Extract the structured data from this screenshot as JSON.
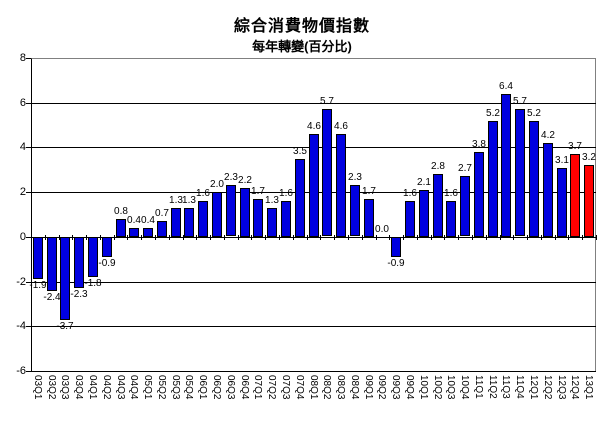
{
  "chart_data": {
    "type": "bar",
    "title": "綜合消費物價指數",
    "subtitle": "每年轉變(百分比)",
    "xlabel": "",
    "ylabel": "",
    "ylim": [
      -6,
      8
    ],
    "y_ticks": [
      8,
      6,
      4,
      2,
      0,
      -2,
      -4,
      -6
    ],
    "grid": true,
    "legend": "none",
    "bar_color": "#0000E0",
    "bar_border_color": "#000000",
    "highlight_color": "#FF0000",
    "highlight_indices": [
      39,
      40
    ],
    "categories": [
      "03Q1",
      "03Q2",
      "03Q3",
      "03Q4",
      "04Q1",
      "04Q2",
      "04Q3",
      "04Q4",
      "05Q1",
      "05Q2",
      "05Q3",
      "05Q4",
      "06Q1",
      "06Q2",
      "06Q3",
      "06Q4",
      "07Q1",
      "07Q2",
      "07Q3",
      "07Q4",
      "08Q1",
      "08Q2",
      "08Q3",
      "08Q4",
      "09Q1",
      "09Q2",
      "09Q3",
      "09Q4",
      "10Q1",
      "10Q2",
      "10Q3",
      "10Q4",
      "11Q1",
      "11Q2",
      "11Q3",
      "11Q4",
      "12Q1",
      "12Q2",
      "12Q3",
      "12Q4",
      "13Q1"
    ],
    "values": [
      -1.9,
      -2.4,
      -3.7,
      -2.3,
      -1.8,
      -0.9,
      0.8,
      0.4,
      0.4,
      0.7,
      1.3,
      1.3,
      1.6,
      2.0,
      2.3,
      2.2,
      1.7,
      1.3,
      1.6,
      3.5,
      4.6,
      5.7,
      4.6,
      2.3,
      1.7,
      0.0,
      -0.9,
      1.6,
      2.1,
      2.8,
      1.6,
      2.7,
      3.8,
      5.2,
      6.4,
      5.7,
      5.2,
      4.2,
      3.1,
      3.7,
      3.2
    ]
  }
}
